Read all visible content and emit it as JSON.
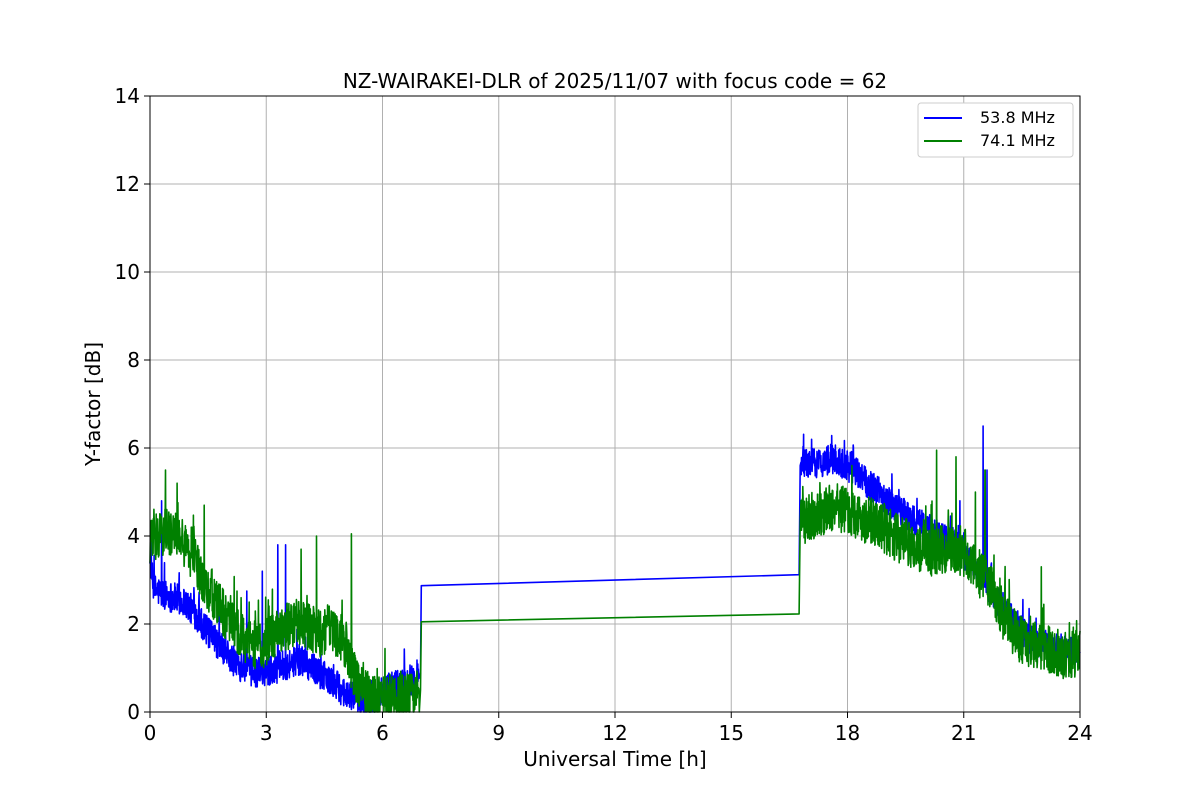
{
  "chart_data": {
    "type": "line",
    "title": "NZ-WAIRAKEI-DLR of 2025/11/07 with focus code = 62",
    "xlabel": "Universal Time [h]",
    "ylabel": "Y-factor [dB]",
    "xlim": [
      0,
      24
    ],
    "ylim": [
      0,
      14
    ],
    "xticks": [
      0,
      3,
      6,
      9,
      12,
      15,
      18,
      21,
      24
    ],
    "yticks": [
      0,
      2,
      4,
      6,
      8,
      10,
      12,
      14
    ],
    "xtick_labels": [
      "0",
      "3",
      "6",
      "9",
      "12",
      "15",
      "18",
      "21",
      "24"
    ],
    "ytick_labels": [
      "0",
      "2",
      "4",
      "6",
      "8",
      "10",
      "12",
      "14"
    ],
    "grid": true,
    "legend_position": "top-right",
    "series": [
      {
        "name": "53.8 MHz",
        "legend_label": "53.8 MHz",
        "color": "#0000ff",
        "noise": 0.35,
        "points": [
          [
            0,
            3.4
          ],
          [
            0.1,
            2.8
          ],
          [
            0.3,
            2.7
          ],
          [
            0.6,
            2.6
          ],
          [
            0.9,
            2.5
          ],
          [
            1.2,
            2.2
          ],
          [
            1.5,
            1.8
          ],
          [
            1.8,
            1.5
          ],
          [
            2.1,
            1.2
          ],
          [
            2.4,
            1.0
          ],
          [
            2.7,
            0.9
          ],
          [
            3.0,
            0.95
          ],
          [
            3.3,
            1.0
          ],
          [
            3.6,
            1.1
          ],
          [
            3.9,
            1.2
          ],
          [
            4.2,
            1.0
          ],
          [
            4.5,
            0.8
          ],
          [
            4.8,
            0.6
          ],
          [
            5.1,
            0.4
          ],
          [
            5.4,
            0.25
          ],
          [
            5.7,
            0.15
          ],
          [
            6.0,
            0.5
          ],
          [
            6.3,
            0.6
          ],
          [
            6.6,
            0.7
          ],
          [
            6.95,
            0.8
          ]
        ],
        "straight_points": [
          [
            6.98,
            0.9
          ],
          [
            7.0,
            2.87
          ],
          [
            16.75,
            3.12
          ],
          [
            16.78,
            5.6
          ]
        ],
        "points2": [
          [
            16.8,
            5.65
          ],
          [
            17.2,
            5.65
          ],
          [
            17.6,
            5.75
          ],
          [
            18.0,
            5.6
          ],
          [
            18.4,
            5.3
          ],
          [
            18.8,
            5.0
          ],
          [
            19.2,
            4.7
          ],
          [
            19.6,
            4.4
          ],
          [
            20.0,
            4.2
          ],
          [
            20.4,
            4.0
          ],
          [
            20.8,
            3.8
          ],
          [
            21.2,
            3.4
          ],
          [
            21.6,
            2.9
          ],
          [
            22.0,
            2.4
          ],
          [
            22.4,
            1.9
          ],
          [
            22.8,
            1.6
          ],
          [
            23.2,
            1.5
          ],
          [
            23.6,
            1.4
          ],
          [
            24.0,
            1.3
          ]
        ],
        "spikes": [
          [
            0.3,
            4.8
          ],
          [
            2.5,
            2.75
          ],
          [
            2.9,
            3.2
          ],
          [
            3.3,
            3.8
          ],
          [
            3.5,
            3.8
          ],
          [
            21.5,
            6.5
          ],
          [
            21.6,
            5.5
          ],
          [
            20.9,
            4.8
          ]
        ]
      },
      {
        "name": "74.1 MHz",
        "legend_label": "74.1 MHz",
        "color": "#008000",
        "noise": 0.55,
        "points": [
          [
            0,
            3.8
          ],
          [
            0.2,
            4.0
          ],
          [
            0.5,
            4.1
          ],
          [
            0.8,
            3.9
          ],
          [
            1.1,
            3.5
          ],
          [
            1.4,
            3.0
          ],
          [
            1.7,
            2.5
          ],
          [
            2.0,
            2.1
          ],
          [
            2.3,
            1.8
          ],
          [
            2.6,
            1.5
          ],
          [
            2.9,
            1.5
          ],
          [
            3.2,
            1.8
          ],
          [
            3.5,
            1.9
          ],
          [
            3.8,
            2.1
          ],
          [
            4.1,
            1.9
          ],
          [
            4.4,
            1.8
          ],
          [
            4.7,
            1.9
          ],
          [
            5.0,
            1.6
          ],
          [
            5.3,
            0.8
          ],
          [
            5.6,
            0.4
          ],
          [
            5.9,
            0.25
          ],
          [
            6.2,
            0.25
          ],
          [
            6.5,
            0.3
          ],
          [
            6.95,
            0.4
          ]
        ],
        "straight_points": [
          [
            6.98,
            0.5
          ],
          [
            7.0,
            2.05
          ],
          [
            16.75,
            2.23
          ],
          [
            16.78,
            4.3
          ]
        ],
        "points2": [
          [
            16.8,
            4.3
          ],
          [
            17.2,
            4.5
          ],
          [
            17.6,
            4.65
          ],
          [
            18.0,
            4.6
          ],
          [
            18.4,
            4.4
          ],
          [
            18.8,
            4.25
          ],
          [
            19.2,
            4.0
          ],
          [
            19.6,
            3.8
          ],
          [
            20.0,
            3.6
          ],
          [
            20.4,
            3.7
          ],
          [
            20.8,
            3.6
          ],
          [
            21.2,
            3.3
          ],
          [
            21.6,
            3.0
          ],
          [
            22.0,
            2.2
          ],
          [
            22.4,
            1.7
          ],
          [
            22.8,
            1.5
          ],
          [
            23.2,
            1.4
          ],
          [
            23.6,
            1.3
          ],
          [
            24.0,
            1.3
          ]
        ],
        "spikes": [
          [
            0.4,
            5.5
          ],
          [
            0.7,
            5.2
          ],
          [
            1.4,
            4.7
          ],
          [
            3.9,
            3.7
          ],
          [
            4.3,
            4.0
          ],
          [
            5.2,
            4.05
          ],
          [
            20.3,
            5.95
          ],
          [
            20.8,
            5.8
          ],
          [
            21.3,
            5.0
          ],
          [
            21.55,
            5.5
          ],
          [
            23.0,
            3.3
          ]
        ]
      }
    ]
  }
}
